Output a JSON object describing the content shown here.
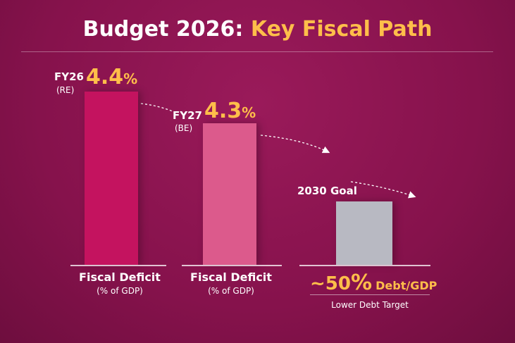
{
  "header": {
    "title": "Budget 2026:",
    "highlight": "Key Fiscal Path"
  },
  "panels": [
    {
      "label": "FY26",
      "note": "(RE)",
      "value": "4.4",
      "unit": "%",
      "caption": "Fiscal Deficit",
      "subcaption": "(% of GDP)"
    },
    {
      "label": "FY27",
      "note": "(BE)",
      "value": "4.3",
      "unit": "%",
      "caption": "Fiscal Deficit",
      "subcaption": "(% of GDP)"
    },
    {
      "label": "2030 Goal",
      "value": "~50",
      "unit": "%",
      "suffix": "Debt/GDP",
      "caption": "Lower Debt Target"
    }
  ]
}
